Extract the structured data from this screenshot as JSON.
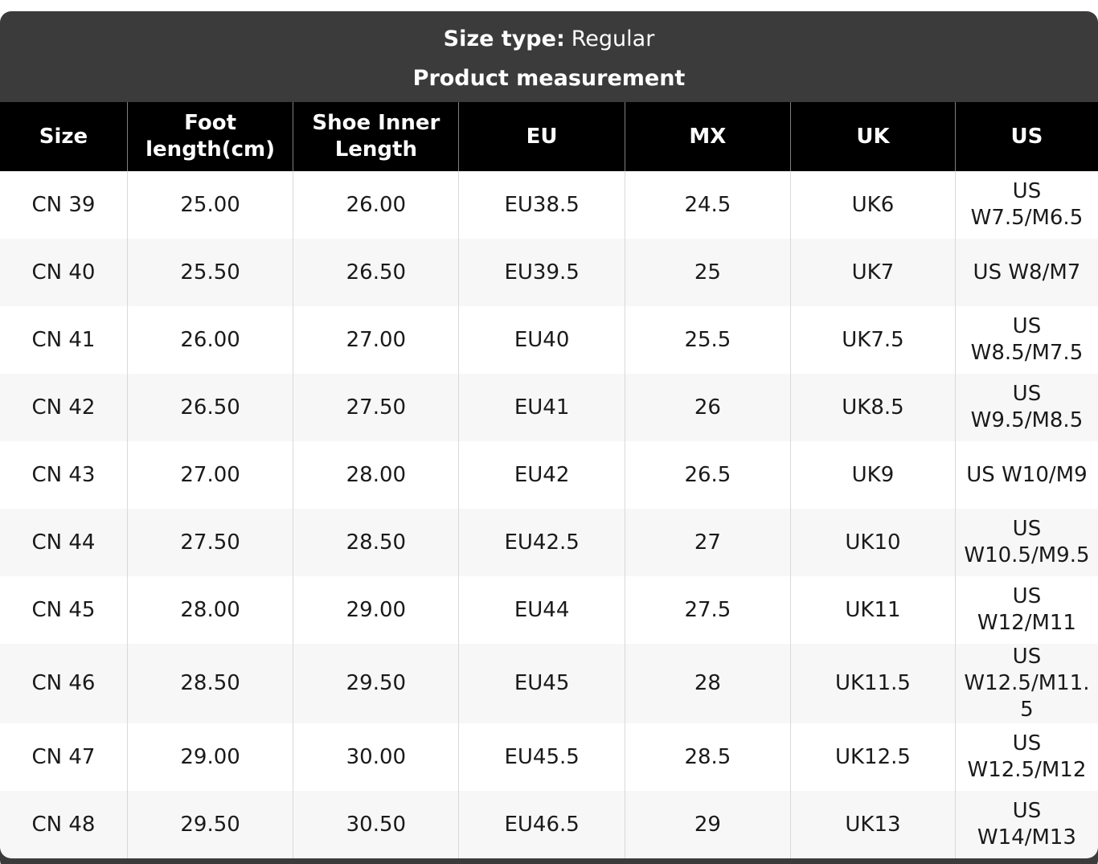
{
  "header": {
    "size_type_label": "Size type:",
    "size_type_value": "Regular",
    "title": "Product measurement"
  },
  "table": {
    "columns": [
      "Size",
      "Foot length(cm)",
      "Shoe Inner Length",
      "EU",
      "MX",
      "UK",
      "US"
    ],
    "rows": [
      [
        "CN 39",
        "25.00",
        "26.00",
        "EU38.5",
        "24.5",
        "UK6",
        "US W7.5/M6.5"
      ],
      [
        "CN 40",
        "25.50",
        "26.50",
        "EU39.5",
        "25",
        "UK7",
        "US W8/M7"
      ],
      [
        "CN 41",
        "26.00",
        "27.00",
        "EU40",
        "25.5",
        "UK7.5",
        "US W8.5/M7.5"
      ],
      [
        "CN 42",
        "26.50",
        "27.50",
        "EU41",
        "26",
        "UK8.5",
        "US W9.5/M8.5"
      ],
      [
        "CN 43",
        "27.00",
        "28.00",
        "EU42",
        "26.5",
        "UK9",
        "US W10/M9"
      ],
      [
        "CN 44",
        "27.50",
        "28.50",
        "EU42.5",
        "27",
        "UK10",
        "US W10.5/M9.5"
      ],
      [
        "CN 45",
        "28.00",
        "29.00",
        "EU44",
        "27.5",
        "UK11",
        "US W12/M11"
      ],
      [
        "CN 46",
        "28.50",
        "29.50",
        "EU45",
        "28",
        "UK11.5",
        "US W12.5/M11.5"
      ],
      [
        "CN 47",
        "29.00",
        "30.00",
        "EU45.5",
        "28.5",
        "UK12.5",
        "US W12.5/M12"
      ],
      [
        "CN 48",
        "29.50",
        "30.50",
        "EU46.5",
        "29",
        "UK13",
        "US W14/M13"
      ]
    ]
  },
  "colors": {
    "card_background": "#3b3b3b",
    "header_row_background": "#000000",
    "header_text": "#ffffff",
    "row_background": "#ffffff",
    "row_alt_background": "#f7f7f7",
    "body_text": "#1a1a1a",
    "header_divider": "#7f7f7f",
    "body_divider": "#d9d9d9"
  }
}
